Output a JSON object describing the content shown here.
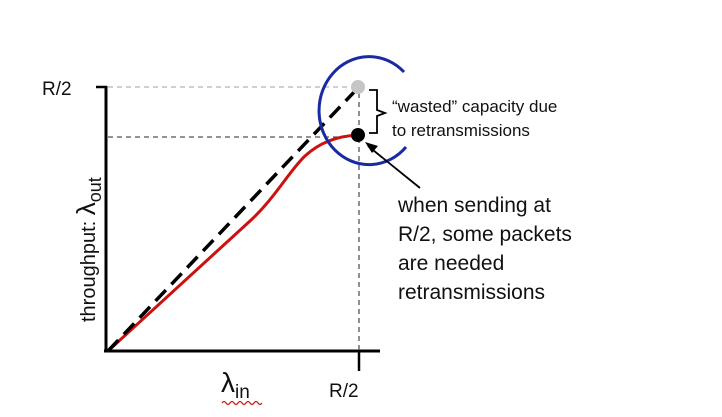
{
  "y_axis": {
    "label_prefix": "throughput: ",
    "lambda_symbol": "λ",
    "lambda_subscript": "out",
    "tick": "R/2"
  },
  "x_axis": {
    "lambda_symbol": "λ",
    "lambda_subscript": "in",
    "tick": "R/2"
  },
  "annotations": {
    "wasted_line1": "“wasted” capacity due",
    "wasted_line2": "to retransmissions",
    "sending_lines": [
      "when sending at",
      "R/2, some packets",
      "are needed",
      "retransmissions"
    ]
  },
  "colors": {
    "axis": "#000000",
    "ideal_line": "#000000",
    "actual_curve": "#cc1111",
    "circle": "#1a2aa0",
    "ideal_point": "#c6c6c6",
    "actual_point": "#000000",
    "guide_line": "#555555",
    "ideal_guide_line": "#b3b3b3"
  }
}
